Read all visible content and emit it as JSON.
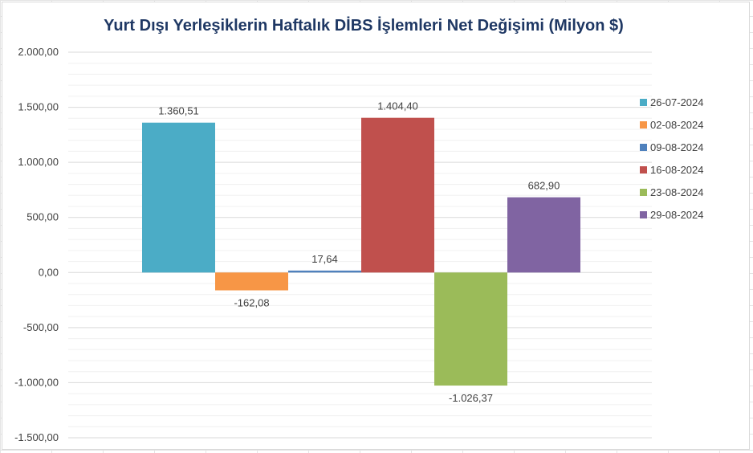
{
  "chart_data": {
    "type": "bar",
    "title": "Yurt Dışı Yerleşiklerin Haftalık DİBS İşlemleri Net Değişimi (Milyon $)",
    "xlabel": "",
    "ylabel": "",
    "ylim": [
      -1500,
      2000
    ],
    "yticks": [
      2000,
      1500,
      1000,
      500,
      0,
      -500,
      -1000,
      -1500
    ],
    "ytick_labels": [
      "2.000,00",
      "1.500,00",
      "1.000,00",
      "500,00",
      "0,00",
      "-500,00",
      "-1.000,00",
      "-1.500,00"
    ],
    "grid": true,
    "legend_position": "right",
    "series": [
      {
        "name": "26-07-2024",
        "value": 1360.51,
        "label": "1.360,51",
        "color": "#4bacc6"
      },
      {
        "name": "02-08-2024",
        "value": -162.08,
        "label": "-162,08",
        "color": "#f79646"
      },
      {
        "name": "09-08-2024",
        "value": 17.64,
        "label": "17,64",
        "color": "#4f81bd"
      },
      {
        "name": "16-08-2024",
        "value": 1404.4,
        "label": "1.404,40",
        "color": "#c0504d"
      },
      {
        "name": "23-08-2024",
        "value": -1026.37,
        "label": "-1.026,37",
        "color": "#9bbb59"
      },
      {
        "name": "29-08-2024",
        "value": 682.9,
        "label": "682,90",
        "color": "#8064a2"
      }
    ]
  }
}
